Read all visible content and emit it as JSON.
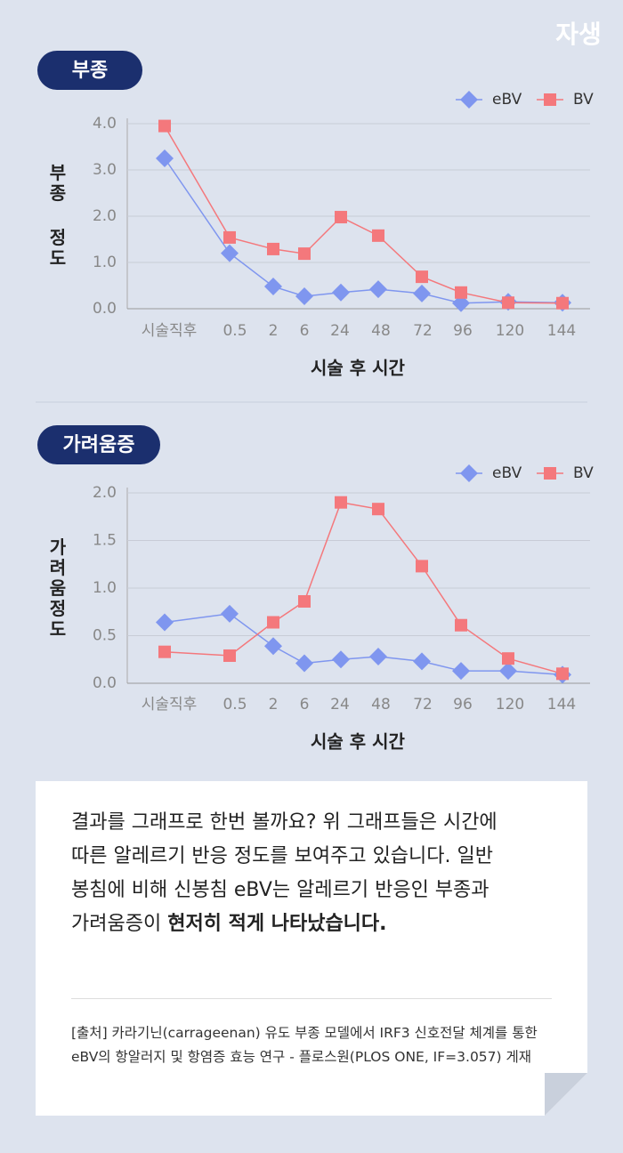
{
  "brand": "자생",
  "chart_data": [
    {
      "type": "line",
      "title": "부종",
      "ylabel": "부종 정도",
      "xlabel": "시술 후 시간",
      "categories": [
        "시술직후",
        "0.5",
        "2",
        "6",
        "24",
        "48",
        "72",
        "96",
        "120",
        "144"
      ],
      "series": [
        {
          "name": "eBV",
          "color": "#7f96ef",
          "marker": "diamond",
          "values": [
            3.25,
            1.2,
            0.48,
            0.27,
            0.35,
            0.42,
            0.33,
            0.12,
            0.15,
            0.13
          ]
        },
        {
          "name": "BV",
          "color": "#f4787c",
          "marker": "square",
          "values": [
            3.95,
            1.54,
            1.29,
            1.19,
            1.98,
            1.58,
            0.69,
            0.35,
            0.13,
            0.12
          ]
        }
      ],
      "ylim": [
        0,
        4
      ],
      "yticks": [
        {
          "value": 0,
          "label": "0.0"
        },
        {
          "value": 1,
          "label": "1.0"
        },
        {
          "value": 2,
          "label": "2.0"
        },
        {
          "value": 3,
          "label": "3.0"
        },
        {
          "value": 4,
          "label": "4.0"
        }
      ],
      "grid": true,
      "legend": "top-right"
    },
    {
      "type": "line",
      "title": "가려움증",
      "ylabel": "가려움정도",
      "xlabel": "시술 후 시간",
      "categories": [
        "시술직후",
        "0.5",
        "2",
        "6",
        "24",
        "48",
        "72",
        "96",
        "120",
        "144"
      ],
      "series": [
        {
          "name": "eBV",
          "color": "#7f96ef",
          "marker": "diamond",
          "values": [
            0.64,
            0.73,
            0.39,
            0.21,
            0.25,
            0.28,
            0.23,
            0.13,
            0.13,
            0.09
          ]
        },
        {
          "name": "BV",
          "color": "#f4787c",
          "marker": "square",
          "values": [
            0.33,
            0.29,
            0.64,
            0.86,
            1.9,
            1.83,
            1.23,
            0.61,
            0.26,
            0.1
          ]
        }
      ],
      "ylim": [
        0,
        2
      ],
      "yticks": [
        {
          "value": 0,
          "label": "0.0"
        },
        {
          "value": 0.5,
          "label": "0.5"
        },
        {
          "value": 1,
          "label": "1.0"
        },
        {
          "value": 1.5,
          "label": "1.5"
        },
        {
          "value": 2,
          "label": "2.0"
        }
      ],
      "grid": true,
      "legend": "top-right"
    }
  ],
  "text_box": {
    "intro": "결과를 그래프로 한번 볼까요? 위 그래프들은 시간에 따른 알레르기 반응 정도를 보여주고 있습니다. 일반 봉침에 비해 신봉침 eBV는 알레르기 반응인 부종과 가려움증이",
    "emphasis": "현저히 적게 나타났습니다.",
    "source": "[출처] 카라기닌(carrageenan) 유도 부종 모델에서 IRF3 신호전달 체계를 통한 eBV의 항알러지 및 항염증 효능 연구 - 플로스원(PLOS ONE, IF=3.057) 게재"
  }
}
